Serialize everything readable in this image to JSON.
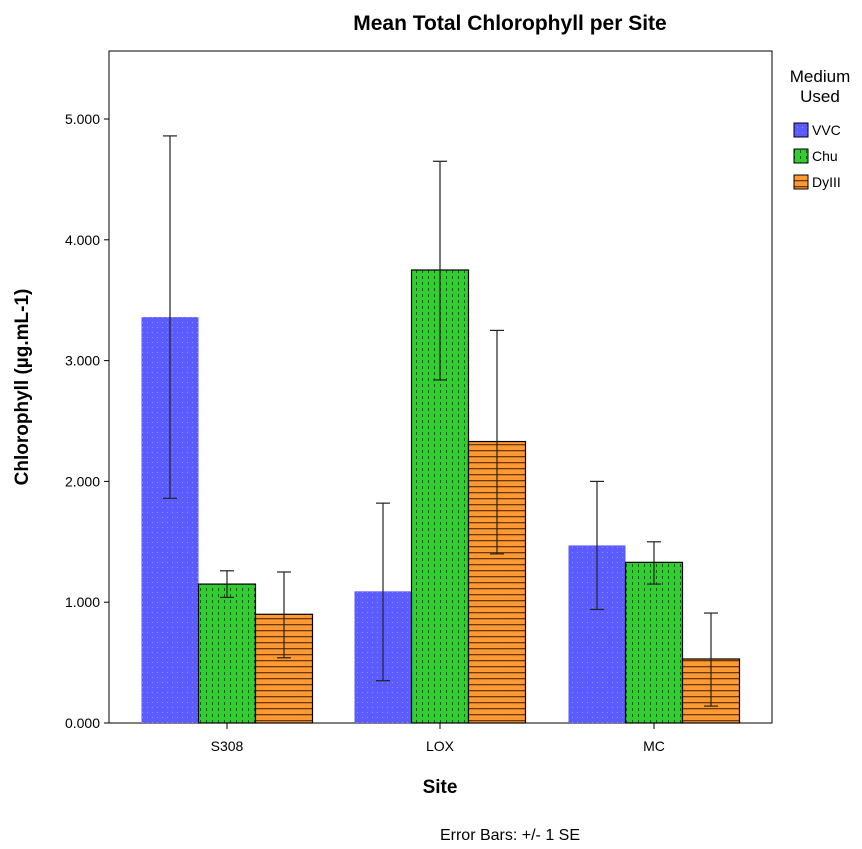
{
  "chart_data": {
    "type": "bar",
    "title": "Mean Total Chlorophyll per Site",
    "xlabel": "Site",
    "ylabel": "Chlorophyll (µg.mL-1)",
    "categories": [
      "S308",
      "LOX",
      "MC"
    ],
    "ylim": [
      0,
      5.5
    ],
    "yticks": [
      0,
      1,
      2,
      3,
      4,
      5
    ],
    "ytick_labels": [
      "0.000",
      "1.000",
      "2.000",
      "3.000",
      "4.000",
      "5.000"
    ],
    "grid": false,
    "legend_title": "Medium Used",
    "legend_position": "right",
    "series": [
      {
        "name": "VVC",
        "values": [
          3.36,
          1.09,
          1.47
        ],
        "err_low": [
          1.86,
          0.35,
          0.94
        ],
        "err_high": [
          4.86,
          1.82,
          2.0
        ],
        "color": "#5b5bff",
        "pattern": "dots"
      },
      {
        "name": "Chu",
        "values": [
          1.15,
          3.75,
          1.33
        ],
        "err_low": [
          1.04,
          2.84,
          1.15
        ],
        "err_high": [
          1.26,
          4.65,
          1.5
        ],
        "color": "#33cc33",
        "pattern": "dashes"
      },
      {
        "name": "DyIII",
        "values": [
          0.9,
          2.33,
          0.53
        ],
        "err_low": [
          0.54,
          1.4,
          0.14
        ],
        "err_high": [
          1.25,
          3.25,
          0.91
        ],
        "color": "#ff9933",
        "pattern": "stripes"
      }
    ],
    "footnote": "Error Bars: +/- 1 SE"
  }
}
